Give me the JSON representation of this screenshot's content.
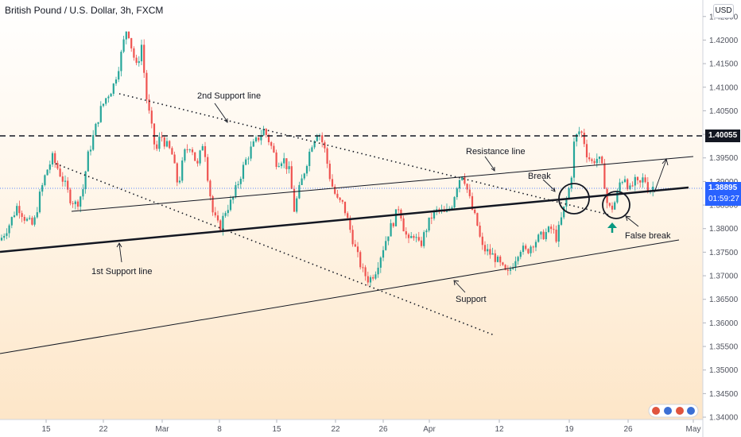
{
  "header": {
    "title": "British Pound / U.S. Dollar, 3h, FXCM",
    "currency": "USD"
  },
  "price_tags": {
    "level": "1.40055",
    "current_price": "1.38895",
    "countdown": "01:59:27"
  },
  "colors": {
    "up": "#26a69a",
    "down": "#ef5350",
    "tag_blue": "#2962ff",
    "background_top": "#ffffff",
    "background_bottom": "#fde6c8"
  },
  "chart_data": {
    "type": "candlestick",
    "symbol": "GBP/USD",
    "timeframe": "3h",
    "x_ticks": [
      "15",
      "22",
      "Mar",
      "8",
      "15",
      "22",
      "26",
      "Apr",
      "12",
      "19",
      "26",
      "May"
    ],
    "y_ticks": [
      "1.42500",
      "1.42000",
      "1.41500",
      "1.41000",
      "1.40500",
      "1.40000",
      "1.39500",
      "1.39000",
      "1.38500",
      "1.38000",
      "1.37500",
      "1.37000",
      "1.36500",
      "1.36000",
      "1.35500",
      "1.35000",
      "1.34500",
      "1.34000"
    ],
    "ylim": [
      1.3395,
      1.4285
    ],
    "horizontal_level": 1.40055,
    "current_price": 1.38895,
    "close_path": [
      [
        0,
        1.3775
      ],
      [
        12,
        1.381
      ],
      [
        22,
        1.385
      ],
      [
        32,
        1.382
      ],
      [
        42,
        1.3805
      ],
      [
        50,
        1.387
      ],
      [
        58,
        1.392
      ],
      [
        66,
        1.395
      ],
      [
        72,
        1.393
      ],
      [
        80,
        1.39
      ],
      [
        88,
        1.3865
      ],
      [
        96,
        1.385
      ],
      [
        104,
        1.388
      ],
      [
        110,
        1.395
      ],
      [
        118,
        1.4
      ],
      [
        126,
        1.405
      ],
      [
        134,
        1.408
      ],
      [
        142,
        1.41
      ],
      [
        150,
        1.415
      ],
      [
        156,
        1.42
      ],
      [
        160,
        1.423
      ],
      [
        166,
        1.418
      ],
      [
        172,
        1.414
      ],
      [
        178,
        1.419
      ],
      [
        184,
        1.408
      ],
      [
        190,
        1.402
      ],
      [
        196,
        1.396
      ],
      [
        202,
        1.4
      ],
      [
        208,
        1.398
      ],
      [
        216,
        1.396
      ],
      [
        224,
        1.389
      ],
      [
        232,
        1.396
      ],
      [
        240,
        1.398
      ],
      [
        248,
        1.393
      ],
      [
        256,
        1.399
      ],
      [
        262,
        1.39
      ],
      [
        268,
        1.383
      ],
      [
        276,
        1.38
      ],
      [
        284,
        1.384
      ],
      [
        292,
        1.386
      ],
      [
        300,
        1.39
      ],
      [
        308,
        1.394
      ],
      [
        316,
        1.397
      ],
      [
        324,
        1.399
      ],
      [
        332,
        1.401
      ],
      [
        340,
        1.398
      ],
      [
        348,
        1.394
      ],
      [
        356,
        1.395
      ],
      [
        364,
        1.392
      ],
      [
        370,
        1.384
      ],
      [
        376,
        1.388
      ],
      [
        384,
        1.393
      ],
      [
        392,
        1.398
      ],
      [
        400,
        1.401
      ],
      [
        408,
        1.397
      ],
      [
        416,
        1.39
      ],
      [
        424,
        1.386
      ],
      [
        432,
        1.385
      ],
      [
        440,
        1.38
      ],
      [
        448,
        1.375
      ],
      [
        456,
        1.371
      ],
      [
        464,
        1.369
      ],
      [
        472,
        1.371
      ],
      [
        480,
        1.375
      ],
      [
        488,
        1.379
      ],
      [
        496,
        1.382
      ],
      [
        502,
        1.385
      ],
      [
        508,
        1.38
      ],
      [
        514,
        1.377
      ],
      [
        520,
        1.379
      ],
      [
        528,
        1.376
      ],
      [
        536,
        1.38
      ],
      [
        544,
        1.383
      ],
      [
        552,
        1.384
      ],
      [
        560,
        1.383
      ],
      [
        568,
        1.385
      ],
      [
        576,
        1.39
      ],
      [
        582,
        1.392
      ],
      [
        588,
        1.388
      ],
      [
        594,
        1.384
      ],
      [
        600,
        1.381
      ],
      [
        606,
        1.376
      ],
      [
        614,
        1.375
      ],
      [
        622,
        1.374
      ],
      [
        630,
        1.372
      ],
      [
        638,
        1.37
      ],
      [
        646,
        1.373
      ],
      [
        654,
        1.376
      ],
      [
        662,
        1.375
      ],
      [
        670,
        1.377
      ],
      [
        678,
        1.378
      ],
      [
        686,
        1.379
      ],
      [
        694,
        1.38
      ],
      [
        700,
        1.378
      ],
      [
        706,
        1.382
      ],
      [
        712,
        1.386
      ],
      [
        718,
        1.39
      ],
      [
        722,
        1.398
      ],
      [
        726,
        1.4
      ],
      [
        730,
        1.401
      ],
      [
        734,
        1.399
      ],
      [
        738,
        1.396
      ],
      [
        744,
        1.394
      ],
      [
        750,
        1.395
      ],
      [
        756,
        1.394
      ],
      [
        760,
        1.39
      ],
      [
        764,
        1.385
      ],
      [
        768,
        1.384
      ],
      [
        772,
        1.385
      ],
      [
        776,
        1.387
      ],
      [
        780,
        1.39
      ],
      [
        786,
        1.391
      ],
      [
        792,
        1.388
      ],
      [
        798,
        1.39
      ],
      [
        804,
        1.389
      ],
      [
        810,
        1.391
      ],
      [
        816,
        1.388
      ],
      [
        822,
        1.389
      ]
    ],
    "annotations": [
      "2nd Support line",
      "Resistance line",
      "Break",
      "1st Support line",
      "Support",
      "False break"
    ]
  }
}
